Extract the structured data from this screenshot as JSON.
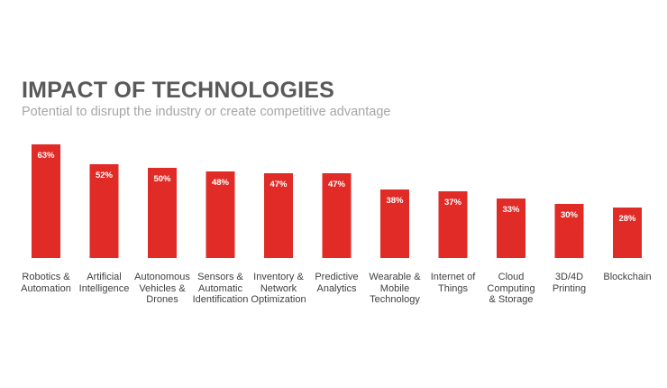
{
  "chart_data": {
    "type": "bar",
    "title": "IMPACT OF TECHNOLOGIES",
    "subtitle": "Potential to disrupt the industry or create competitive advantage",
    "xlabel": "",
    "ylabel": "",
    "ylim": [
      0,
      63
    ],
    "value_suffix": "%",
    "categories": [
      "Robotics &\nAutomation",
      "Artificial\nIntelligence",
      "Autonomous\nVehicles &\nDrones",
      "Sensors &\nAutomatic\nIdentification",
      "Inventory &\nNetwork\nOptimization",
      "Predictive\nAnalytics",
      "Wearable &\nMobile\nTechnology",
      "Internet of\nThings",
      "Cloud\nComputing\n& Storage",
      "3D/4D\nPrinting",
      "Blockchain"
    ],
    "values": [
      63,
      52,
      50,
      48,
      47,
      47,
      38,
      37,
      33,
      30,
      28
    ],
    "bar_color": "#e02b27",
    "label_color": "#ffffff"
  }
}
